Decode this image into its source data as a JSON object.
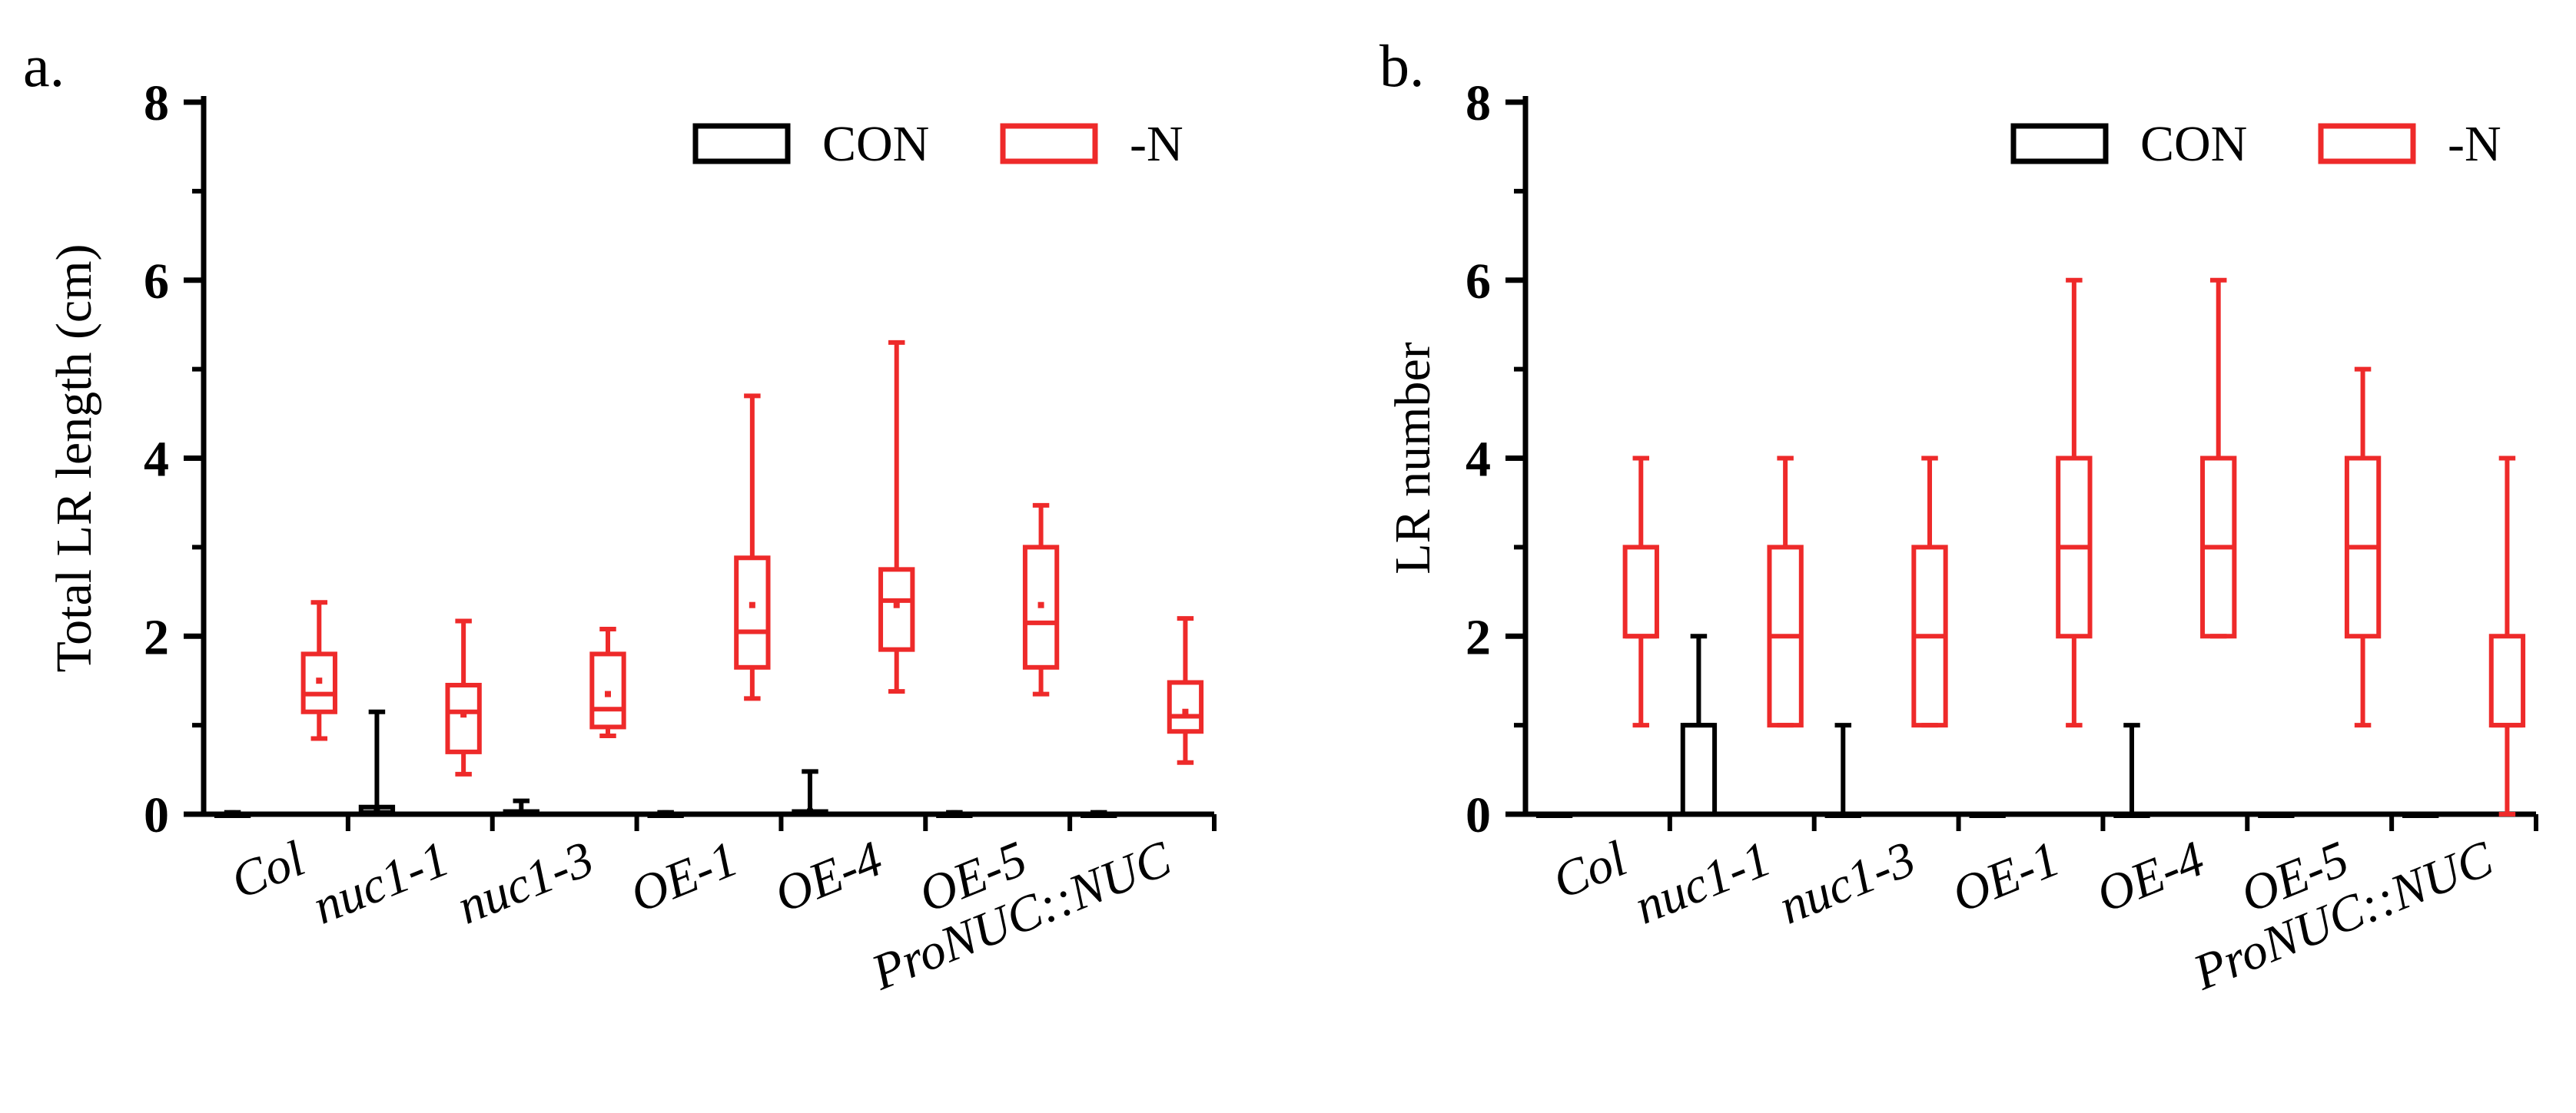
{
  "chart_data": [
    {
      "panel_label": "a.",
      "type": "box",
      "ylabel": "Total LR length (cm)",
      "xlabel": "",
      "ylim": [
        0,
        8
      ],
      "yticks": [
        0,
        2,
        4,
        6,
        8
      ],
      "categories": [
        "Col",
        "nuc1-1",
        "nuc1-3",
        "OE-1",
        "OE-4",
        "OE-5",
        "ProNUC::NUC"
      ],
      "legend": {
        "position": "top-right",
        "entries": [
          "CON",
          "-N"
        ]
      },
      "series": [
        {
          "name": "CON",
          "color": "#000000",
          "boxes": [
            {
              "min": 0,
              "q1": 0,
              "median": 0,
              "q3": 0,
              "max": 0.02,
              "mean": 0.01
            },
            {
              "min": 0,
              "q1": 0,
              "median": 0.02,
              "q3": 0.08,
              "max": 1.15,
              "mean": 0.06
            },
            {
              "min": 0,
              "q1": 0,
              "median": 0,
              "q3": 0.03,
              "max": 0.15,
              "mean": 0.02
            },
            {
              "min": 0,
              "q1": 0,
              "median": 0,
              "q3": 0,
              "max": 0.02,
              "mean": 0.01
            },
            {
              "min": 0,
              "q1": 0,
              "median": 0,
              "q3": 0.03,
              "max": 0.48,
              "mean": 0.03
            },
            {
              "min": 0,
              "q1": 0,
              "median": 0,
              "q3": 0,
              "max": 0.02,
              "mean": 0.01
            },
            {
              "min": 0,
              "q1": 0,
              "median": 0,
              "q3": 0,
              "max": 0.02,
              "mean": 0.01
            }
          ]
        },
        {
          "name": "-N",
          "color": "#ee2a2a",
          "boxes": [
            {
              "min": 0.85,
              "q1": 1.15,
              "median": 1.35,
              "q3": 1.8,
              "max": 2.38,
              "mean": 1.5
            },
            {
              "min": 0.45,
              "q1": 0.7,
              "median": 1.15,
              "q3": 1.45,
              "max": 2.17,
              "mean": 1.12
            },
            {
              "min": 0.88,
              "q1": 0.98,
              "median": 1.18,
              "q3": 1.8,
              "max": 2.08,
              "mean": 1.35
            },
            {
              "min": 1.3,
              "q1": 1.65,
              "median": 2.05,
              "q3": 2.88,
              "max": 4.7,
              "mean": 2.35
            },
            {
              "min": 1.38,
              "q1": 1.85,
              "median": 2.4,
              "q3": 2.75,
              "max": 5.3,
              "mean": 2.35
            },
            {
              "min": 1.35,
              "q1": 1.65,
              "median": 2.15,
              "q3": 3.0,
              "max": 3.47,
              "mean": 2.35
            },
            {
              "min": 0.58,
              "q1": 0.93,
              "median": 1.1,
              "q3": 1.48,
              "max": 2.2,
              "mean": 1.15
            }
          ]
        }
      ]
    },
    {
      "panel_label": "b.",
      "type": "box",
      "ylabel": "LR number",
      "xlabel": "",
      "ylim": [
        0,
        8
      ],
      "yticks": [
        0,
        2,
        4,
        6,
        8
      ],
      "categories": [
        "Col",
        "nuc1-1",
        "nuc1-3",
        "OE-1",
        "OE-4",
        "OE-5",
        "ProNUC::NUC"
      ],
      "legend": {
        "position": "top-right",
        "entries": [
          "CON",
          "-N"
        ]
      },
      "series": [
        {
          "name": "CON",
          "color": "#000000",
          "boxes": [
            {
              "min": 0,
              "q1": 0,
              "median": 0,
              "q3": 0,
              "max": 0
            },
            {
              "min": 0,
              "q1": 0,
              "median": 1,
              "q3": 1,
              "max": 2
            },
            {
              "min": 0,
              "q1": 0,
              "median": 0,
              "q3": 0,
              "max": 1
            },
            {
              "min": 0,
              "q1": 0,
              "median": 0,
              "q3": 0,
              "max": 0
            },
            {
              "min": 0,
              "q1": 0,
              "median": 0,
              "q3": 0,
              "max": 1
            },
            {
              "min": 0,
              "q1": 0,
              "median": 0,
              "q3": 0,
              "max": 0
            },
            {
              "min": 0,
              "q1": 0,
              "median": 0,
              "q3": 0,
              "max": 0
            }
          ]
        },
        {
          "name": "-N",
          "color": "#ee2a2a",
          "boxes": [
            {
              "min": 1,
              "q1": 2,
              "median": 2,
              "q3": 3,
              "max": 4
            },
            {
              "min": 1,
              "q1": 1,
              "median": 2,
              "q3": 3,
              "max": 4
            },
            {
              "min": 1,
              "q1": 1,
              "median": 2,
              "q3": 3,
              "max": 4
            },
            {
              "min": 1,
              "q1": 2,
              "median": 3,
              "q3": 4,
              "max": 6
            },
            {
              "min": 2,
              "q1": 2,
              "median": 3,
              "q3": 4,
              "max": 6
            },
            {
              "min": 1,
              "q1": 2,
              "median": 3,
              "q3": 4,
              "max": 5
            },
            {
              "min": 0,
              "q1": 1,
              "median": 1,
              "q3": 2,
              "max": 4
            }
          ]
        }
      ]
    }
  ]
}
